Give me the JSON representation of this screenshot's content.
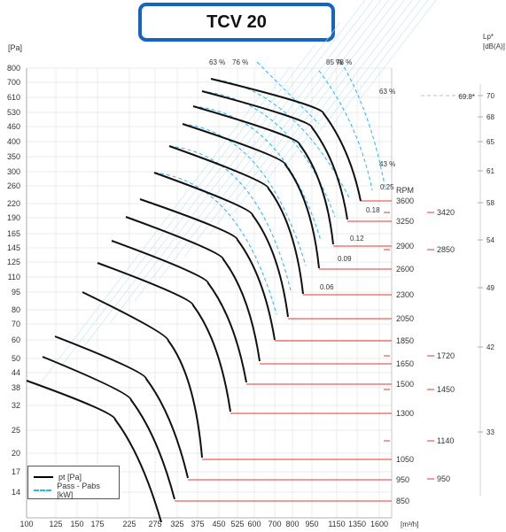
{
  "title": "TCV 20",
  "chart_data": {
    "type": "line",
    "y_unit_label": "[Pa]",
    "x_unit_label": "[m³/h]",
    "right_unit_label_line1": "Lp*",
    "right_unit_label_line2": "[dB(A)]",
    "rpm_label": "RPM",
    "x_ticks": [
      100,
      125,
      150,
      175,
      225,
      275,
      325,
      375,
      450,
      525,
      600,
      700,
      800,
      950,
      1150,
      1350,
      1600
    ],
    "y_ticks": [
      14,
      17,
      20,
      25,
      32,
      38,
      44,
      50,
      60,
      70,
      80,
      95,
      110,
      125,
      145,
      165,
      190,
      220,
      260,
      300,
      350,
      400,
      460,
      530,
      610,
      700,
      800
    ],
    "series": [
      {
        "rpm": "3600",
        "top": [
          238,
          89
        ],
        "knee": [
          365,
          128
        ],
        "end": [
          407,
          227
        ],
        "line_y": 227
      },
      {
        "rpm": "3250",
        "top": [
          228,
          103
        ],
        "knee": [
          352,
          144
        ],
        "end": [
          392,
          248
        ],
        "line_y": 250
      },
      {
        "rpm": "2900",
        "top": [
          218,
          120
        ],
        "knee": [
          338,
          163
        ],
        "end": [
          376,
          276
        ],
        "line_y": 278
      },
      {
        "rpm": "2600",
        "top": [
          206,
          140
        ],
        "knee": [
          322,
          186
        ],
        "end": [
          360,
          303
        ],
        "line_y": 304
      },
      {
        "rpm": "2300",
        "top": [
          191,
          165
        ],
        "knee": [
          303,
          213
        ],
        "end": [
          342,
          332
        ],
        "line_y": 333
      },
      {
        "rpm": "2050",
        "top": [
          174,
          195
        ],
        "knee": [
          285,
          243
        ],
        "end": [
          325,
          358
        ],
        "line_y": 360
      },
      {
        "rpm": "1850",
        "top": [
          158,
          225
        ],
        "knee": [
          268,
          271
        ],
        "end": [
          310,
          384
        ],
        "line_y": 385
      },
      {
        "rpm": "1650",
        "top": [
          142,
          245
        ],
        "knee": [
          252,
          293
        ],
        "end": [
          293,
          408
        ],
        "line_y": 411
      },
      {
        "rpm": "1500",
        "top": [
          126,
          272
        ],
        "knee": [
          235,
          320
        ],
        "end": [
          278,
          432
        ],
        "line_y": 434
      },
      {
        "rpm": "1300",
        "top": [
          110,
          297
        ],
        "knee": [
          218,
          345
        ],
        "end": [
          260,
          465
        ],
        "line_y": 467
      },
      {
        "rpm": "1050",
        "top": [
          93,
          330
        ],
        "knee": [
          190,
          385
        ],
        "end": [
          228,
          517
        ],
        "line_y": 519
      },
      {
        "rpm": "950",
        "top": [
          62,
          380
        ],
        "knee": [
          165,
          428
        ],
        "end": [
          212,
          540
        ],
        "line_y": 542
      },
      {
        "rpm": "850",
        "top": [
          48,
          403
        ],
        "knee": [
          148,
          452
        ],
        "end": [
          197,
          564
        ],
        "line_y": 566
      },
      {
        "rpm": "",
        "top": [
          30,
          430
        ],
        "knee": [
          130,
          474
        ],
        "end": [
          182,
          590
        ],
        "line_y": null
      }
    ],
    "efficiency_labels_top": [
      "63 %",
      "76 %",
      "85 %",
      "78 %"
    ],
    "efficiency_labels_right": [
      "63 %",
      "43 %"
    ],
    "power_labels": [
      "0.25",
      "0.18",
      "0.12",
      "0.09",
      "0.06"
    ],
    "db_labels": [
      {
        "label": "70",
        "y": 108
      },
      {
        "label": "68",
        "y": 132
      },
      {
        "label": "65",
        "y": 160
      },
      {
        "label": "61",
        "y": 193
      },
      {
        "label": "58",
        "y": 229
      },
      {
        "label": "54",
        "y": 271
      },
      {
        "label": "49",
        "y": 325
      },
      {
        "label": "42",
        "y": 392
      },
      {
        "label": "33",
        "y": 488
      }
    ],
    "db_reference_label": "69.8*",
    "right_rpm_marks": [
      {
        "label": "3420",
        "y": 240
      },
      {
        "label": "2850",
        "y": 282
      },
      {
        "label": "1720",
        "y": 402
      },
      {
        "label": "1450",
        "y": 440
      },
      {
        "label": "1140",
        "y": 498
      },
      {
        "label": "950",
        "y": 541
      }
    ],
    "legend": [
      "pt [Pa]",
      "Pass - Pabs [kW]"
    ]
  }
}
